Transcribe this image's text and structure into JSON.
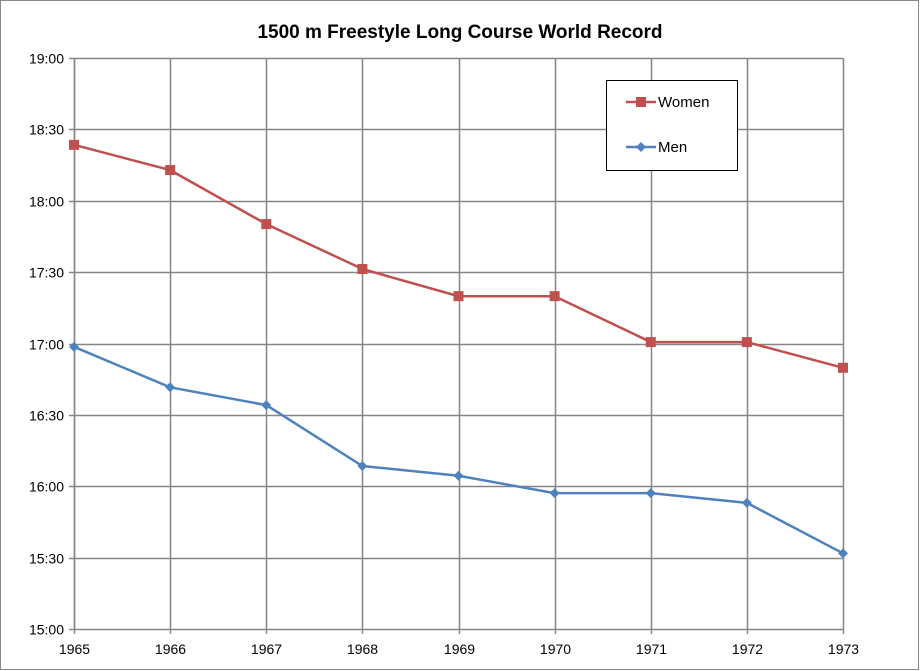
{
  "chart_data": {
    "type": "line",
    "title": "1500 m Freestyle Long Course World Record",
    "xlabel": "",
    "ylabel": "",
    "x": [
      1965,
      1966,
      1967,
      1968,
      1969,
      1970,
      1971,
      1972,
      1973
    ],
    "x_tick_labels": [
      "1965",
      "1966",
      "1967",
      "1968",
      "1969",
      "1970",
      "1971",
      "1972",
      "1973"
    ],
    "y_unit": "seconds",
    "ylim": [
      900,
      1140
    ],
    "y_ticks": [
      900,
      930,
      960,
      990,
      1020,
      1050,
      1080,
      1110,
      1140
    ],
    "y_tick_labels": [
      "15:00",
      "15:30",
      "16:00",
      "16:30",
      "17:00",
      "17:30",
      "18:00",
      "18:30",
      "19:00"
    ],
    "grid": true,
    "legend_position": "top-right",
    "series": [
      {
        "name": "Women",
        "color": "#C0504D",
        "marker": "square",
        "values": [
          1103.5,
          1092.9,
          1070.2,
          1051.3,
          1039.9,
          1039.9,
          1020.6,
          1020.6,
          1009.8
        ]
      },
      {
        "name": "Men",
        "color": "#4F81BD",
        "marker": "diamond",
        "values": [
          1018.6,
          1001.6,
          994.1,
          968.5,
          964.4,
          957.1,
          957.1,
          953.0,
          931.8
        ]
      }
    ]
  }
}
